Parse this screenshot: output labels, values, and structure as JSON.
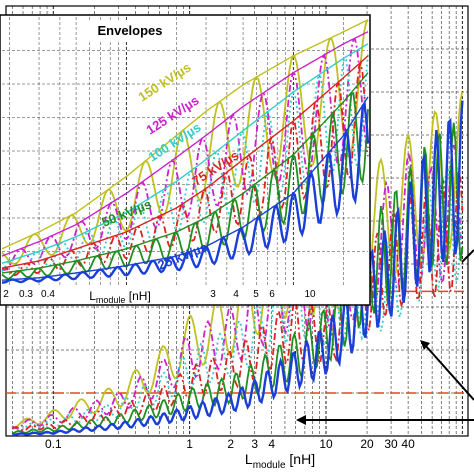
{
  "chart_data": [
    {
      "type": "line",
      "role": "main",
      "xscale": "log",
      "xlim": [
        0.045,
        110
      ],
      "xlabel_main": "L",
      "xlabel_sub": "module",
      "xlabel_unit": " [nH]",
      "xticks": [
        "0.1",
        "1",
        "2",
        "3",
        "4",
        "10",
        "20",
        "30",
        "40"
      ],
      "grid": true,
      "reference_lines_colors": [
        "#e04a1a",
        "#e04a1a"
      ],
      "series": [
        {
          "color": "#c0c020",
          "style": "solid",
          "x": [
            0.05,
            0.1,
            0.3,
            0.6,
            1,
            2,
            3,
            4,
            6,
            10,
            15,
            20,
            30,
            40,
            60,
            100
          ],
          "y": [
            0.03,
            0.06,
            0.12,
            0.2,
            0.28,
            0.34,
            0.42,
            0.47,
            0.52,
            0.5,
            0.55,
            0.62,
            0.66,
            0.7,
            0.75,
            0.8
          ]
        },
        {
          "color": "#cc22cc",
          "style": "dashdot",
          "x": [
            0.05,
            0.1,
            0.3,
            0.6,
            1,
            2,
            3,
            4,
            6,
            10,
            15,
            20,
            30,
            40,
            60,
            100
          ],
          "y": [
            0.03,
            0.05,
            0.1,
            0.17,
            0.24,
            0.3,
            0.36,
            0.41,
            0.46,
            0.44,
            0.48,
            0.54,
            0.6,
            0.66,
            0.62,
            0.7
          ]
        },
        {
          "color": "#33cccc",
          "style": "dotted",
          "x": [
            0.05,
            0.1,
            0.3,
            0.6,
            1,
            2,
            3,
            4,
            6,
            10,
            15,
            20,
            30,
            40,
            60,
            100
          ],
          "y": [
            0.02,
            0.04,
            0.08,
            0.14,
            0.2,
            0.25,
            0.3,
            0.35,
            0.42,
            0.38,
            0.4,
            0.42,
            0.46,
            0.54,
            0.6,
            0.66
          ]
        },
        {
          "color": "#dd2222",
          "style": "dashdot",
          "x": [
            0.05,
            0.1,
            0.3,
            0.6,
            1,
            2,
            3,
            4,
            6,
            10,
            15,
            20,
            30,
            40,
            60,
            100
          ],
          "y": [
            0.02,
            0.03,
            0.07,
            0.11,
            0.16,
            0.2,
            0.24,
            0.28,
            0.32,
            0.3,
            0.36,
            0.44,
            0.52,
            0.56,
            0.58,
            0.62
          ]
        },
        {
          "color": "#1f8f1f",
          "style": "solid",
          "x": [
            0.05,
            0.1,
            0.3,
            0.6,
            1,
            2,
            3,
            4,
            6,
            10,
            15,
            20,
            30,
            40,
            60,
            100
          ],
          "y": [
            0.01,
            0.02,
            0.05,
            0.08,
            0.11,
            0.14,
            0.17,
            0.2,
            0.24,
            0.3,
            0.4,
            0.5,
            0.56,
            0.62,
            0.7,
            0.74
          ]
        },
        {
          "color": "#1a3fd6",
          "style": "solid",
          "x": [
            0.05,
            0.1,
            0.3,
            0.6,
            1,
            2,
            3,
            4,
            6,
            10,
            15,
            20,
            30,
            40,
            60,
            100
          ],
          "y": [
            0.005,
            0.01,
            0.03,
            0.05,
            0.07,
            0.1,
            0.13,
            0.16,
            0.2,
            0.26,
            0.34,
            0.42,
            0.5,
            0.58,
            0.7,
            0.78
          ]
        }
      ]
    },
    {
      "type": "line",
      "role": "inset",
      "title": "Envelopes",
      "xscale": "log",
      "xlim": [
        0.18,
        28
      ],
      "xlabel_main": "L",
      "xlabel_sub": "module",
      "xlabel_unit": " [nH]",
      "xticks": [
        "2",
        "0.3",
        "0.4",
        "3",
        "4",
        "5",
        "6",
        "10"
      ],
      "grid": true,
      "series": [
        {
          "name": "150 kV/µs",
          "color": "#c0c020",
          "style": "solid",
          "x": [
            0.18,
            0.3,
            0.5,
            1,
            2,
            3,
            5,
            10,
            20,
            28
          ],
          "y": [
            0.15,
            0.22,
            0.3,
            0.45,
            0.62,
            0.72,
            0.83,
            0.95,
            1.05,
            1.1
          ]
        },
        {
          "name": "125 kV/µs",
          "color": "#cc22cc",
          "style": "dashdot",
          "x": [
            0.18,
            0.3,
            0.5,
            1,
            2,
            3,
            5,
            10,
            20,
            28
          ],
          "y": [
            0.12,
            0.18,
            0.25,
            0.38,
            0.53,
            0.62,
            0.74,
            0.88,
            1.0,
            1.05
          ]
        },
        {
          "name": "100 kV/µs",
          "color": "#33cccc",
          "style": "dotted",
          "x": [
            0.18,
            0.3,
            0.5,
            1,
            2,
            3,
            5,
            10,
            20,
            28
          ],
          "y": [
            0.09,
            0.14,
            0.2,
            0.3,
            0.43,
            0.52,
            0.64,
            0.8,
            0.94,
            1.0
          ]
        },
        {
          "name": "75 kV/µs",
          "color": "#dd2222",
          "style": "dashdot",
          "x": [
            0.18,
            0.3,
            0.5,
            1,
            2,
            3,
            5,
            10,
            20,
            28
          ],
          "y": [
            0.07,
            0.1,
            0.15,
            0.22,
            0.32,
            0.4,
            0.52,
            0.68,
            0.86,
            0.95
          ]
        },
        {
          "name": "50 kV/µs",
          "color": "#1f8f1f",
          "style": "solid",
          "x": [
            0.18,
            0.3,
            0.5,
            1,
            2,
            3,
            5,
            10,
            20,
            28
          ],
          "y": [
            0.05,
            0.07,
            0.1,
            0.15,
            0.22,
            0.28,
            0.38,
            0.54,
            0.76,
            0.88
          ]
        },
        {
          "name": "25 kV/µs",
          "color": "#1a3fd6",
          "style": "solid",
          "x": [
            0.18,
            0.3,
            0.5,
            1,
            2,
            3,
            5,
            10,
            20,
            28
          ],
          "y": [
            0.02,
            0.03,
            0.05,
            0.08,
            0.12,
            0.16,
            0.24,
            0.38,
            0.62,
            0.78
          ]
        }
      ]
    }
  ]
}
